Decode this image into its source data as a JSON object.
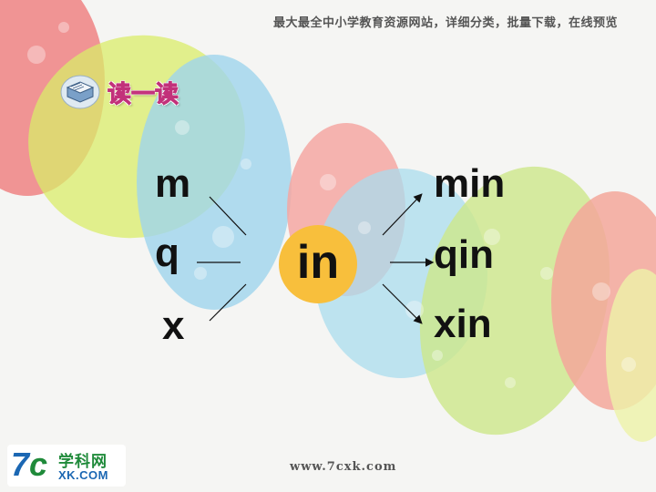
{
  "header": {
    "site_text": "最大最全中小学教育资源网站，详细分类，批量下载，在线预览"
  },
  "title": {
    "text": "读一读",
    "icon": "book-icon"
  },
  "initials": [
    "m",
    "q",
    "x"
  ],
  "center": {
    "final": "in",
    "color": "#f8bf3c"
  },
  "results": [
    "min",
    "qin",
    "xin"
  ],
  "logo": {
    "mark_a": "7",
    "mark_b": "c",
    "cn": "学科网",
    "en": "XK.COM"
  },
  "footer": {
    "url": "www.7cxk.com"
  },
  "colors": {
    "title": "#e85fa0",
    "brand_green": "#1f8a3a",
    "brand_blue": "#1b67b3"
  }
}
